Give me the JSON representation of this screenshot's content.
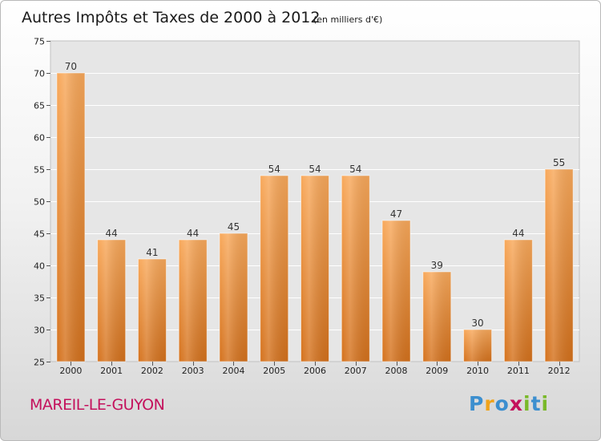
{
  "chart_data": {
    "type": "bar",
    "title": "Autres Impôts et Taxes de 2000 à 2012",
    "unit_note": "(en milliers d'€)",
    "categories": [
      "2000",
      "2001",
      "2002",
      "2003",
      "2004",
      "2005",
      "2006",
      "2007",
      "2008",
      "2009",
      "2010",
      "2011",
      "2012"
    ],
    "values": [
      70,
      44,
      41,
      44,
      45,
      54,
      54,
      54,
      47,
      39,
      30,
      44,
      55
    ],
    "value_labels": [
      "70",
      "44",
      "41",
      "44",
      "45",
      "54",
      "54",
      "54",
      "47",
      "39",
      "30",
      "44",
      "55"
    ],
    "ylim": [
      25,
      75
    ],
    "yticks": [
      25,
      30,
      35,
      40,
      45,
      50,
      55,
      60,
      65,
      70,
      75
    ],
    "ytick_labels": [
      "25",
      "30",
      "35",
      "40",
      "45",
      "50",
      "55",
      "60",
      "65",
      "70",
      "75"
    ],
    "xlabel": "",
    "ylabel": "",
    "grid": true,
    "bar_color": "#f0892a",
    "bar_color_light": "#f8a85a",
    "bar_color_dark": "#d4711c"
  },
  "footer": {
    "commune": "MAREIL-LE-GUYON",
    "commune_color": "#c4115c",
    "logo_text": "Proxiti",
    "logo_letters": [
      "P",
      "r",
      "o",
      "x",
      "i",
      "t",
      "i"
    ],
    "logo_colors": [
      "#3c8fcf",
      "#f0a31a",
      "#3c8fcf",
      "#c4115c",
      "#7ab929",
      "#3c8fcf",
      "#7ab929"
    ]
  },
  "colors": {
    "title": "#1a1a1a",
    "grid": "#ffffff",
    "plot_border": "#c2c2c2",
    "plot_background": "#e6e6e6"
  }
}
